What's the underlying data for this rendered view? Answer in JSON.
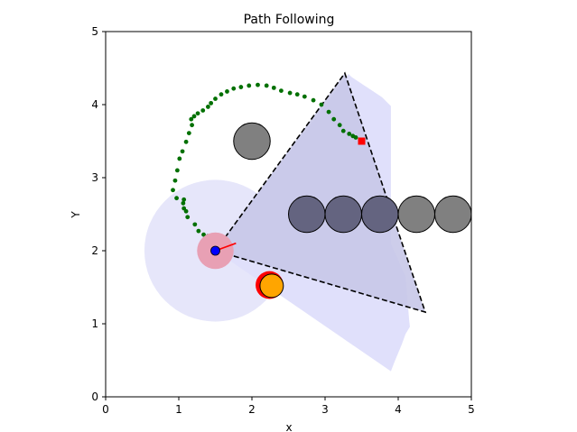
{
  "chart_data": {
    "type": "scatter",
    "title": "Path Following",
    "xlabel": "x",
    "ylabel": "Y",
    "xlim": [
      0,
      5
    ],
    "ylim": [
      0,
      5
    ],
    "xticks": [
      "0",
      "1",
      "2",
      "3",
      "4",
      "5"
    ],
    "yticks": [
      "0",
      "1",
      "2",
      "3",
      "4",
      "5"
    ],
    "grid": false,
    "legend": "none",
    "robot": {
      "x": 1.5,
      "y": 2.0,
      "body_radius": 0.25,
      "sensor_radius": 0.97,
      "heading_deg": 20,
      "heading_length": 0.3,
      "color": "#0000ff",
      "body_color": "#e8a0b4",
      "sensor_color": "#e6e6fa",
      "heading_color": "#ff0000"
    },
    "target": {
      "x": 3.5,
      "y": 3.5,
      "color": "#ff0000"
    },
    "path": {
      "color": "#007000",
      "x": [
        1.4,
        1.44,
        1.4,
        1.34,
        1.27,
        1.22,
        1.12,
        1.1,
        1.07,
        1.06,
        1.07,
        0.97,
        0.92,
        0.95,
        0.98,
        1.01,
        1.05,
        1.1,
        1.14,
        1.18,
        1.17,
        1.21,
        1.26,
        1.33,
        1.4,
        1.44,
        1.5,
        1.58,
        1.66,
        1.75,
        1.85,
        1.96,
        2.08,
        2.2,
        2.3,
        2.4,
        2.52,
        2.62,
        2.72,
        2.84,
        2.95,
        3.05,
        3.12,
        3.2,
        3.25,
        3.33,
        3.38,
        3.42
      ],
      "y": [
        2.05,
        2.12,
        2.2,
        2.22,
        2.27,
        2.36,
        2.46,
        2.54,
        2.58,
        2.65,
        2.7,
        2.72,
        2.83,
        2.96,
        3.1,
        3.26,
        3.36,
        3.49,
        3.61,
        3.72,
        3.8,
        3.84,
        3.88,
        3.92,
        3.97,
        4.02,
        4.08,
        4.14,
        4.18,
        4.22,
        4.24,
        4.26,
        4.27,
        4.26,
        4.23,
        4.19,
        4.16,
        4.14,
        4.11,
        4.06,
        4.0,
        3.9,
        3.8,
        3.72,
        3.64,
        3.6,
        3.57,
        3.55
      ]
    },
    "fov_triangle": {
      "vertices": [
        [
          1.5,
          2.0
        ],
        [
          3.27,
          4.43
        ],
        [
          4.37,
          1.16
        ]
      ]
    },
    "fov_sweep": [
      [
        1.5,
        2.0
      ],
      [
        3.32,
        4.42
      ],
      [
        3.36,
        4.38
      ],
      [
        3.42,
        4.34
      ],
      [
        3.48,
        4.3
      ],
      [
        3.54,
        4.26
      ],
      [
        3.6,
        4.22
      ],
      [
        3.66,
        4.18
      ],
      [
        3.72,
        4.14
      ],
      [
        3.78,
        4.1
      ],
      [
        3.84,
        4.04
      ],
      [
        3.9,
        3.98
      ],
      [
        3.9,
        2.1
      ],
      [
        4.1,
        1.65
      ],
      [
        4.15,
        1.05
      ],
      [
        4.16,
        0.96
      ],
      [
        4.1,
        0.86
      ],
      [
        4.05,
        0.72
      ],
      [
        4.0,
        0.6
      ],
      [
        3.95,
        0.48
      ],
      [
        3.9,
        0.35
      ]
    ],
    "obstacles": [
      {
        "x": 2.0,
        "y": 3.5,
        "r": 0.25,
        "color": "#808080",
        "in_view": false
      },
      {
        "x": 2.75,
        "y": 2.5,
        "r": 0.25,
        "color": "#646480",
        "in_view": true
      },
      {
        "x": 3.25,
        "y": 2.5,
        "r": 0.25,
        "color": "#646480",
        "in_view": true
      },
      {
        "x": 3.75,
        "y": 2.5,
        "r": 0.25,
        "color": "#646480",
        "in_view": true
      },
      {
        "x": 4.25,
        "y": 2.5,
        "r": 0.25,
        "color": "#808080",
        "in_view": false
      },
      {
        "x": 4.75,
        "y": 2.5,
        "r": 0.25,
        "color": "#808080",
        "in_view": false
      }
    ],
    "moving_obstacle": {
      "x": 2.27,
      "y": 1.52,
      "r": 0.16,
      "color": "#ffa500",
      "shadow_x": 2.24,
      "shadow_y": 1.53,
      "shadow_r": 0.19,
      "shadow_color": "#ff0000"
    }
  }
}
